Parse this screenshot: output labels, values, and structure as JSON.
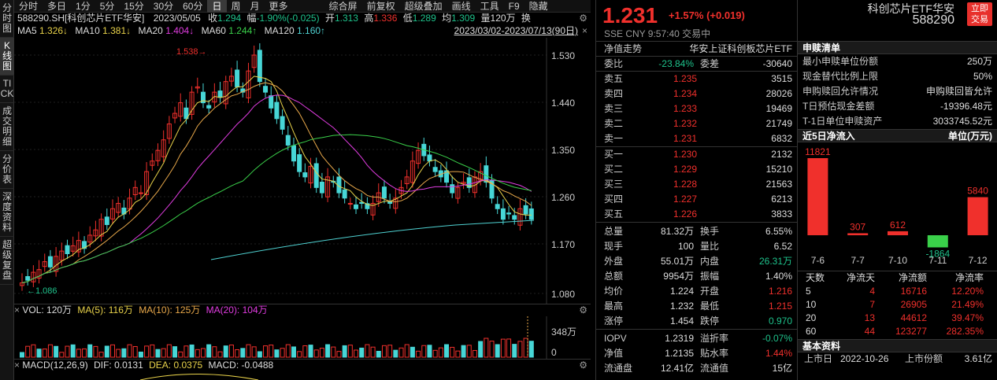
{
  "left_tabs": [
    "分时图",
    "K线图",
    "TICK",
    "成交明细",
    "分价表",
    "深度资料",
    "超级复盘"
  ],
  "period_tabs": [
    "分时",
    "多日",
    "1分",
    "5分",
    "15分",
    "30分",
    "60分",
    "日",
    "周",
    "月",
    "更多"
  ],
  "period_active": "日",
  "tool_tabs": [
    "综合屏",
    "前复权",
    "超级叠加",
    "画线",
    "工具",
    "F9",
    "隐藏"
  ],
  "info1": {
    "code": "588290.SH[科创芯片ETF华安]",
    "date": "2023/05/05",
    "shou_l": "收",
    "shou": "1.294",
    "fu_l": "幅",
    "fu": "-1.90%(-0.025)",
    "kai_l": "开",
    "kai": "1.313",
    "gao_l": "高",
    "gao": "1.336",
    "di_l": "低",
    "di": "1.289",
    "jun_l": "均",
    "jun": "1.309",
    "liang_l": "量",
    "liang": "120万",
    "huan": "换"
  },
  "ma": {
    "ma5_l": "MA5",
    "ma5": "1.326↓",
    "ma10_l": "MA10",
    "ma10": "1.381↓",
    "ma20_l": "MA20",
    "ma20": "1.404↓",
    "ma60_l": "MA60",
    "ma60": "1.244↑",
    "ma120_l": "MA120",
    "ma120": "1.160↑",
    "range": "2023/03/02-2023/07/13(90日)"
  },
  "price_axis": [
    "1.530",
    "1.440",
    "1.350",
    "1.260",
    "1.170",
    "1.080"
  ],
  "marks": {
    "high": "1.538→",
    "low": "←1.086"
  },
  "vol": {
    "label": "VOL: 120万",
    "ma5": "MA(5): 116万",
    "ma10": "MA(10): 125万",
    "ma20": "MA(20): 104万",
    "axis_top": "348万",
    "axis_zero": "0"
  },
  "macd": {
    "label": "MACD(12,26,9)",
    "dif": "DIF: 0.0131",
    "dea": "DEA: 0.0375",
    "macd": "MACD: -0.0488"
  },
  "quote": {
    "price": "1.231",
    "change": "+1.57% (+0.019)",
    "name": "科创芯片ETF华安",
    "code": "588290",
    "btn1": "立即",
    "btn2": "交易",
    "sub": "SSE  CNY  9:57:40  交易中"
  },
  "nav": {
    "l": "净值走势",
    "r": "华安上证科创板芯片ETF"
  },
  "weibi": {
    "l1": "委比",
    "v1": "-23.84%",
    "l2": "委差",
    "v2": "-30640"
  },
  "sells": [
    {
      "l": "卖五",
      "p": "1.235",
      "v": "3515"
    },
    {
      "l": "卖四",
      "p": "1.234",
      "v": "28026"
    },
    {
      "l": "卖三",
      "p": "1.233",
      "v": "19469"
    },
    {
      "l": "卖二",
      "p": "1.232",
      "v": "21749"
    },
    {
      "l": "卖一",
      "p": "1.231",
      "v": "6832"
    }
  ],
  "buys": [
    {
      "l": "买一",
      "p": "1.230",
      "v": "2132"
    },
    {
      "l": "买二",
      "p": "1.229",
      "v": "15210"
    },
    {
      "l": "买三",
      "p": "1.228",
      "v": "21563"
    },
    {
      "l": "买四",
      "p": "1.227",
      "v": "6213"
    },
    {
      "l": "买五",
      "p": "1.226",
      "v": "3833"
    }
  ],
  "stats": [
    {
      "l1": "总量",
      "v1": "81.32万",
      "c1": "wh",
      "l2": "换手",
      "v2": "6.55%",
      "c2": "wh"
    },
    {
      "l1": "现手",
      "v1": "100",
      "c1": "wh",
      "l2": "量比",
      "v2": "6.52",
      "c2": "wh"
    },
    {
      "l1": "外盘",
      "v1": "55.01万",
      "c1": "up",
      "l2": "内盘",
      "v2": "26.31万",
      "c2": "dn"
    },
    {
      "l1": "总额",
      "v1": "9954万",
      "c1": "wh",
      "l2": "振幅",
      "v2": "1.40%",
      "c2": "wh"
    },
    {
      "l1": "均价",
      "v1": "1.224",
      "c1": "up",
      "l2": "开盘",
      "v2": "1.216",
      "c2": "up"
    },
    {
      "l1": "最高",
      "v1": "1.232",
      "c1": "up",
      "l2": "最低",
      "v2": "1.215",
      "c2": "up"
    },
    {
      "l1": "涨停",
      "v1": "1.454",
      "c1": "up",
      "l2": "跌停",
      "v2": "0.970",
      "c2": "dn"
    }
  ],
  "stats2": [
    {
      "l1": "IOPV",
      "v1": "1.2319",
      "c1": "wh",
      "l2": "溢折率",
      "v2": "-0.07%",
      "c2": "dn"
    },
    {
      "l1": "净值",
      "v1": "1.2135",
      "c1": "wh",
      "l2": "贴水率",
      "v2": "1.44%",
      "c2": "up"
    },
    {
      "l1": "流通盘",
      "v1": "12.41亿",
      "c1": "wh",
      "l2": "流通值",
      "v2": "15亿",
      "c2": "wh"
    }
  ],
  "redeem": {
    "title": "申赎清单",
    "rows": [
      {
        "k": "最小申赎单位份额",
        "v": "250万"
      },
      {
        "k": "现金替代比例上限",
        "v": "50%"
      },
      {
        "k": "申购赎回允许情况",
        "v": "申购赎回皆允许"
      },
      {
        "k": "T日预估现金差额",
        "v": "-19396.48元"
      },
      {
        "k": "T-1日单位申赎资产",
        "v": "3033745.52元"
      }
    ]
  },
  "flow": {
    "title": "近5日净流入",
    "unit": "单位(万元)"
  },
  "chart_data": {
    "type": "bar",
    "categories": [
      "7-6",
      "7-7",
      "7-10",
      "7-11",
      "7-12"
    ],
    "values": [
      11821,
      307,
      612,
      -1864,
      5840
    ],
    "title": "近5日净流入",
    "ylabel": "单位(万元)"
  },
  "flow_table": {
    "headers": [
      "天数",
      "净流天",
      "净流额",
      "净流率"
    ],
    "rows": [
      {
        "d": "5",
        "n": "4",
        "a": "16716",
        "r": "12.20%"
      },
      {
        "d": "10",
        "n": "7",
        "a": "26905",
        "r": "21.49%"
      },
      {
        "d": "20",
        "n": "13",
        "a": "44612",
        "r": "39.47%"
      },
      {
        "d": "60",
        "n": "44",
        "a": "123277",
        "r": "282.35%"
      }
    ]
  },
  "basic": {
    "title": "基本资料",
    "l1": "上市日",
    "v1": "2022-10-26",
    "l2": "上市份额",
    "v2": "3.61亿"
  },
  "colors": {
    "up": "#f0302c",
    "down": "#1ec28b",
    "ma5": "#e8d24a",
    "ma10": "#e03ce0",
    "ma20": "#4fd2d2",
    "ma60": "#3ad04a"
  }
}
